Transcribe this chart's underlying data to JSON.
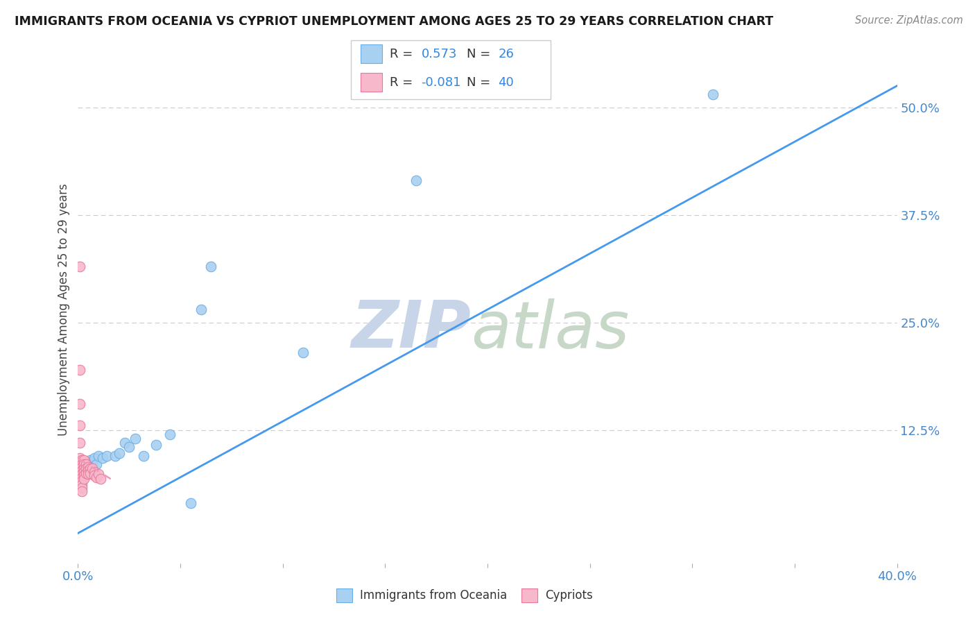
{
  "title": "IMMIGRANTS FROM OCEANIA VS CYPRIOT UNEMPLOYMENT AMONG AGES 25 TO 29 YEARS CORRELATION CHART",
  "source": "Source: ZipAtlas.com",
  "ylabel": "Unemployment Among Ages 25 to 29 years",
  "xlim": [
    0.0,
    0.4
  ],
  "ylim": [
    -0.03,
    0.56
  ],
  "xticks": [
    0.0,
    0.05,
    0.1,
    0.15,
    0.2,
    0.25,
    0.3,
    0.35,
    0.4
  ],
  "yticks_right": [
    0.0,
    0.125,
    0.25,
    0.375,
    0.5
  ],
  "ytick_labels_right": [
    "",
    "12.5%",
    "25.0%",
    "37.5%",
    "50.0%"
  ],
  "xtick_labels": [
    "0.0%",
    "",
    "",
    "",
    "",
    "",
    "",
    "",
    "40.0%"
  ],
  "grid_color": "#cccccc",
  "watermark_zip": "ZIP",
  "watermark_atlas": "atlas",
  "watermark_color_zip": "#c8d4e8",
  "watermark_color_atlas": "#c8d8c8",
  "blue_color": "#a8d0f0",
  "blue_edge": "#6aaee8",
  "pink_color": "#f8b8cc",
  "pink_edge": "#e87898",
  "blue_line_color": "#4499ee",
  "pink_line_color": "#ee99bb",
  "legend_R1": "0.573",
  "legend_N1": "26",
  "legend_R2": "-0.081",
  "legend_N2": "40",
  "blue_line_x0": 0.0,
  "blue_line_y0": 0.005,
  "blue_line_x1": 0.4,
  "blue_line_y1": 0.525,
  "pink_line_x0": 0.0,
  "pink_line_y0": 0.092,
  "pink_line_x1": 0.016,
  "pink_line_y1": 0.068,
  "blue_points_x": [
    0.001,
    0.002,
    0.003,
    0.004,
    0.005,
    0.006,
    0.007,
    0.008,
    0.009,
    0.01,
    0.012,
    0.014,
    0.018,
    0.02,
    0.023,
    0.025,
    0.028,
    0.032,
    0.038,
    0.045,
    0.055,
    0.06,
    0.065,
    0.11,
    0.165,
    0.31
  ],
  "blue_points_y": [
    0.082,
    0.078,
    0.088,
    0.082,
    0.085,
    0.09,
    0.088,
    0.092,
    0.085,
    0.095,
    0.092,
    0.095,
    0.095,
    0.098,
    0.11,
    0.105,
    0.115,
    0.095,
    0.108,
    0.12,
    0.04,
    0.265,
    0.315,
    0.215,
    0.415,
    0.515
  ],
  "pink_points_x": [
    0.001,
    0.001,
    0.001,
    0.001,
    0.001,
    0.001,
    0.001,
    0.001,
    0.001,
    0.001,
    0.002,
    0.002,
    0.002,
    0.002,
    0.002,
    0.002,
    0.002,
    0.002,
    0.002,
    0.002,
    0.003,
    0.003,
    0.003,
    0.003,
    0.003,
    0.003,
    0.004,
    0.004,
    0.004,
    0.005,
    0.005,
    0.005,
    0.006,
    0.006,
    0.007,
    0.008,
    0.008,
    0.009,
    0.01,
    0.011
  ],
  "pink_points_y": [
    0.315,
    0.195,
    0.155,
    0.13,
    0.11,
    0.092,
    0.085,
    0.08,
    0.076,
    0.072,
    0.09,
    0.085,
    0.082,
    0.078,
    0.074,
    0.07,
    0.066,
    0.062,
    0.058,
    0.054,
    0.09,
    0.085,
    0.08,
    0.076,
    0.072,
    0.068,
    0.085,
    0.08,
    0.075,
    0.082,
    0.078,
    0.074,
    0.08,
    0.075,
    0.08,
    0.076,
    0.072,
    0.07,
    0.074,
    0.068
  ]
}
